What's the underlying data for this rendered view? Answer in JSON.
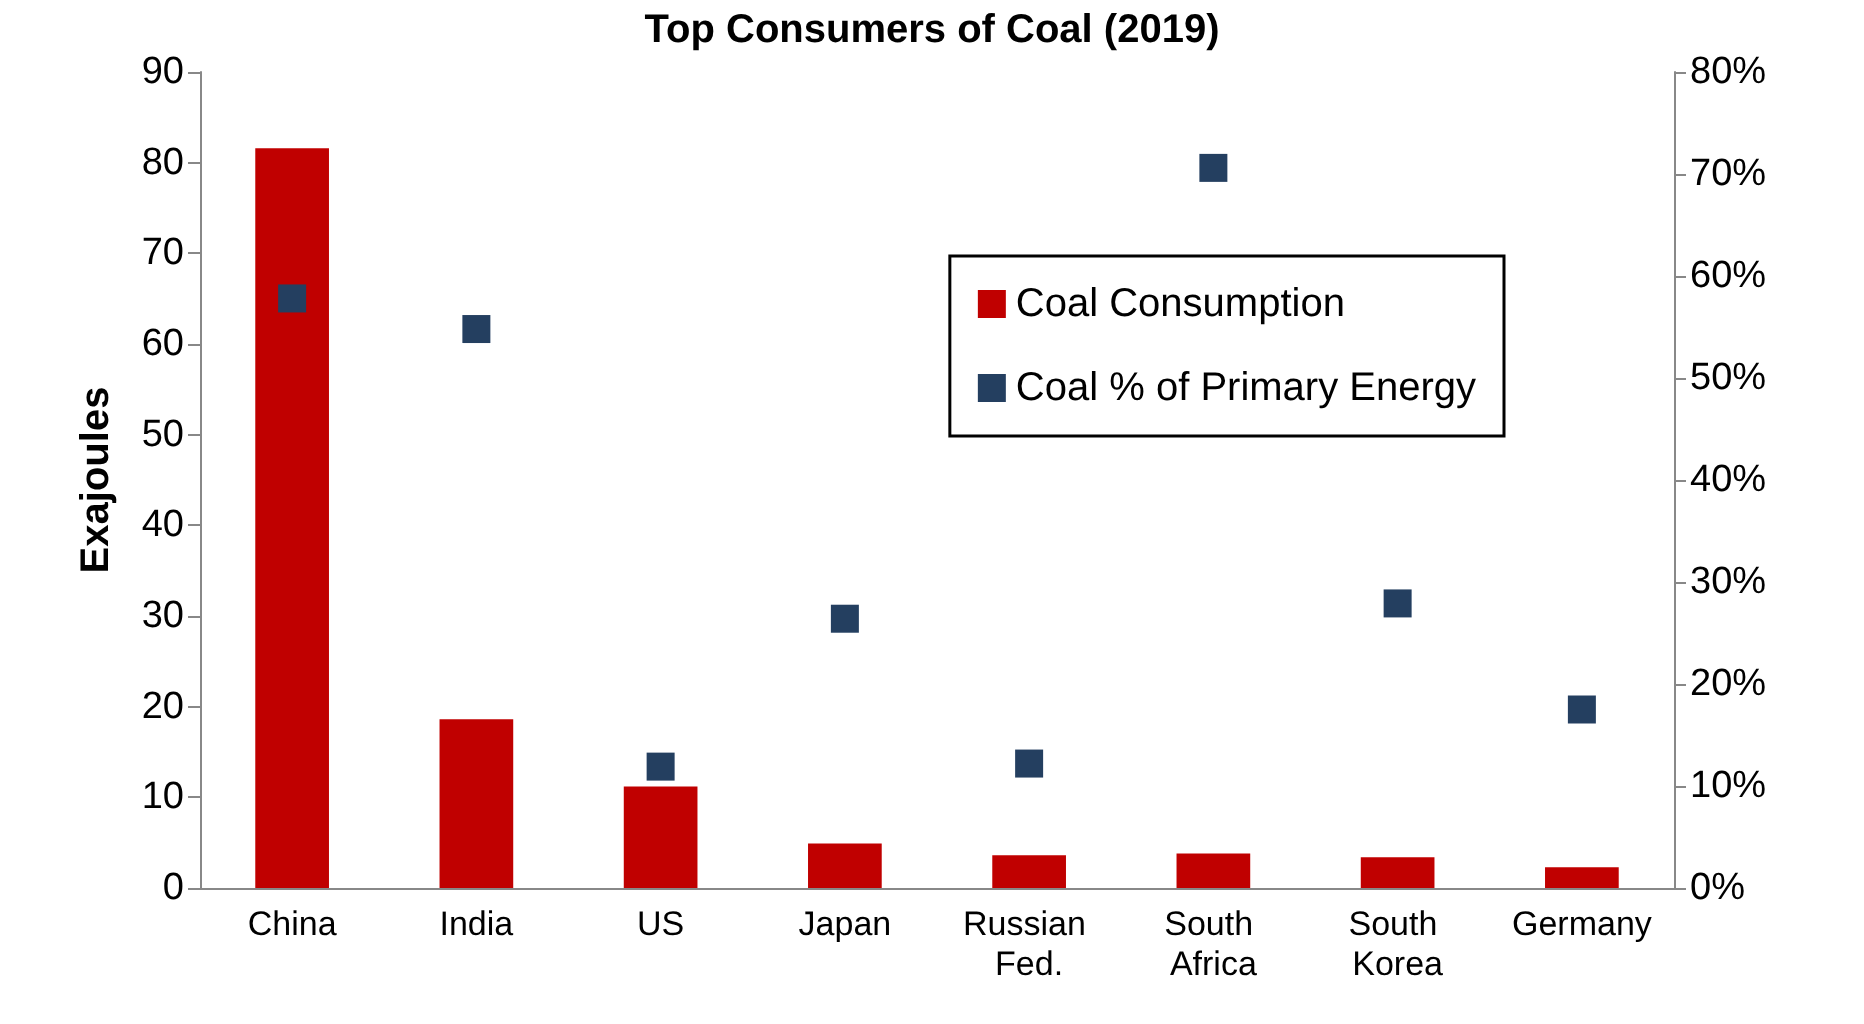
{
  "chart_data": {
    "type": "bar",
    "title": "Top Consumers of Coal (2019)",
    "ylabel": "Exajoules",
    "categories": [
      "China",
      "India",
      "US",
      "Japan",
      "Russian Fed.",
      "South Africa",
      "South Korea",
      "Germany"
    ],
    "series": [
      {
        "name": "Coal Consumption",
        "color": "#c00000",
        "values": [
          81.6,
          18.6,
          11.2,
          4.9,
          3.6,
          3.8,
          3.4,
          2.3
        ]
      },
      {
        "name": "Coal % of Primary Energy",
        "type": "scatter",
        "axis": "y2",
        "color": "#243f60",
        "values": [
          57.8,
          54.8,
          11.9,
          26.4,
          12.2,
          70.6,
          27.9,
          17.5
        ]
      }
    ],
    "ylim": [
      0,
      90
    ],
    "yticks": [
      0,
      10,
      20,
      30,
      40,
      50,
      60,
      70,
      80,
      90
    ],
    "y2lim": [
      0,
      80
    ],
    "y2ticks": [
      {
        "value": 0,
        "label": "0%"
      },
      {
        "value": 10,
        "label": "10%"
      },
      {
        "value": 20,
        "label": "20%"
      },
      {
        "value": 30,
        "label": "30%"
      },
      {
        "value": 40,
        "label": "40%"
      },
      {
        "value": 50,
        "label": "50%"
      },
      {
        "value": 60,
        "label": "60%"
      },
      {
        "value": 70,
        "label": "70%"
      },
      {
        "value": 80,
        "label": "80%"
      }
    ],
    "marker": "square",
    "legend": "top right",
    "grid": false
  }
}
